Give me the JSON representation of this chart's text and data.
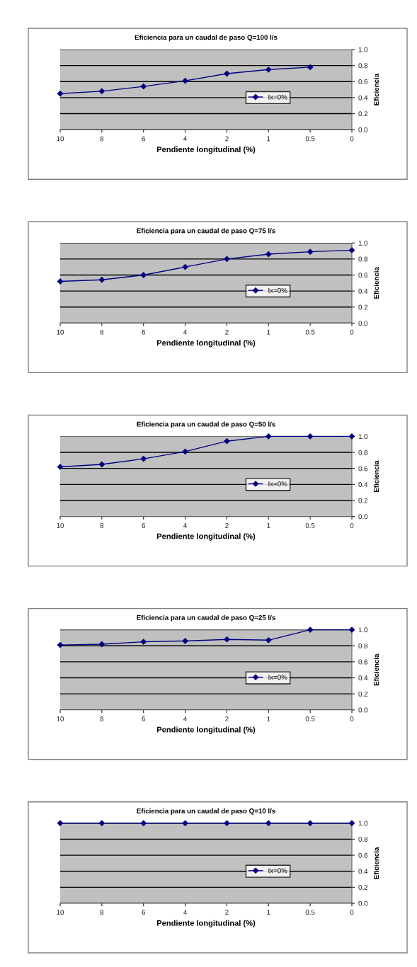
{
  "chart_data": [
    {
      "type": "line",
      "title": "Eficiencia para un caudal de paso Q=100 l/s",
      "xlabel": "Pendiente longitudinal (%)",
      "ylabel": "Eficiencia",
      "categories": [
        "10",
        "8",
        "6",
        "4",
        "2",
        "1",
        "0.5",
        "0"
      ],
      "series": [
        {
          "name": "Ix=0%",
          "color": "#000080",
          "values": [
            0.45,
            0.48,
            0.54,
            0.61,
            0.7,
            0.75,
            0.78,
            null
          ]
        }
      ],
      "ylim": [
        0,
        1
      ],
      "yticks": [
        {
          "value": 0,
          "label": "0.0"
        },
        {
          "value": 0.2,
          "label": "0.2"
        },
        {
          "value": 0.4,
          "label": "0.4"
        },
        {
          "value": 0.6,
          "label": "0.6"
        },
        {
          "value": 0.8,
          "label": "0.8"
        },
        {
          "value": 1,
          "label": "1.0"
        }
      ],
      "grid": "y",
      "legend": "center right",
      "marker": "diamond",
      "line_style": "solid"
    },
    {
      "type": "line",
      "title": "Eficiencia para un caudal de paso Q=75 l/s",
      "xlabel": "Pendiente longitudinal (%)",
      "ylabel": "Eficiencia",
      "categories": [
        "10",
        "8",
        "6",
        "4",
        "2",
        "1",
        "0.5",
        "0"
      ],
      "series": [
        {
          "name": "Ix=0%",
          "color": "#000080",
          "values": [
            0.52,
            0.54,
            0.6,
            0.7,
            0.8,
            0.86,
            0.89,
            0.91
          ]
        }
      ],
      "ylim": [
        0,
        1
      ],
      "yticks": [
        {
          "value": 0,
          "label": "0.0"
        },
        {
          "value": 0.2,
          "label": "0.2"
        },
        {
          "value": 0.4,
          "label": "0.4"
        },
        {
          "value": 0.6,
          "label": "0.6"
        },
        {
          "value": 0.8,
          "label": "0.8"
        },
        {
          "value": 1,
          "label": "1.0"
        }
      ],
      "grid": "y",
      "legend": "center right",
      "marker": "diamond",
      "line_style": "solid"
    },
    {
      "type": "line",
      "title": "Eficiencia para un caudal de paso Q=50 l/s",
      "xlabel": "Pendiente longitudinal (%)",
      "ylabel": "Eficiencia",
      "categories": [
        "10",
        "8",
        "6",
        "4",
        "2",
        "1",
        "0.5",
        "0"
      ],
      "series": [
        {
          "name": "Ix=0%",
          "color": "#000080",
          "values": [
            0.62,
            0.65,
            0.72,
            0.81,
            0.94,
            1.0,
            1.0,
            1.0
          ]
        }
      ],
      "ylim": [
        0,
        1
      ],
      "yticks": [
        {
          "value": 0,
          "label": "0.0"
        },
        {
          "value": 0.2,
          "label": "0.2"
        },
        {
          "value": 0.4,
          "label": "0.4"
        },
        {
          "value": 0.6,
          "label": "0.6"
        },
        {
          "value": 0.8,
          "label": "0.8"
        },
        {
          "value": 1,
          "label": "1.0"
        }
      ],
      "grid": "y",
      "legend": "center right",
      "marker": "diamond",
      "line_style": "solid"
    },
    {
      "type": "line",
      "title": "Eficiencia para un caudal de paso Q=25 l/s",
      "xlabel": "Pendiente longitudinal (%)",
      "ylabel": "Eficiencia",
      "categories": [
        "10",
        "8",
        "6",
        "4",
        "2",
        "1",
        "0.5",
        "0"
      ],
      "series": [
        {
          "name": "Ix=0%",
          "color": "#000080",
          "values": [
            0.81,
            0.82,
            0.85,
            0.86,
            0.88,
            0.87,
            1.0,
            1.0
          ]
        }
      ],
      "ylim": [
        0,
        1
      ],
      "yticks": [
        {
          "value": 0,
          "label": "0.0"
        },
        {
          "value": 0.2,
          "label": "0.2"
        },
        {
          "value": 0.4,
          "label": "0.4"
        },
        {
          "value": 0.6,
          "label": "0.6"
        },
        {
          "value": 0.8,
          "label": "0.8"
        },
        {
          "value": 1,
          "label": "1.0"
        }
      ],
      "grid": "y",
      "legend": "center right",
      "marker": "diamond",
      "line_style": "solid"
    },
    {
      "type": "line",
      "title": "Eficiencia para un caudal de paso Q=10 l/s",
      "xlabel": "Pendiente longitudinal (%)",
      "ylabel": "Eficiencia",
      "categories": [
        "10",
        "8",
        "6",
        "4",
        "2",
        "1",
        "0.5",
        "0"
      ],
      "series": [
        {
          "name": "Ix=0%",
          "color": "#000080",
          "values": [
            1.0,
            1.0,
            1.0,
            1.0,
            1.0,
            1.0,
            1.0,
            1.0
          ]
        }
      ],
      "ylim": [
        0,
        1
      ],
      "yticks": [
        {
          "value": 0,
          "label": "0.0"
        },
        {
          "value": 0.2,
          "label": "0.2"
        },
        {
          "value": 0.4,
          "label": "0.4"
        },
        {
          "value": 0.6,
          "label": "0.6"
        },
        {
          "value": 0.8,
          "label": "0.8"
        },
        {
          "value": 1,
          "label": "1.0"
        }
      ],
      "grid": "y",
      "legend": "center right",
      "marker": "diamond",
      "line_style": "solid"
    }
  ]
}
